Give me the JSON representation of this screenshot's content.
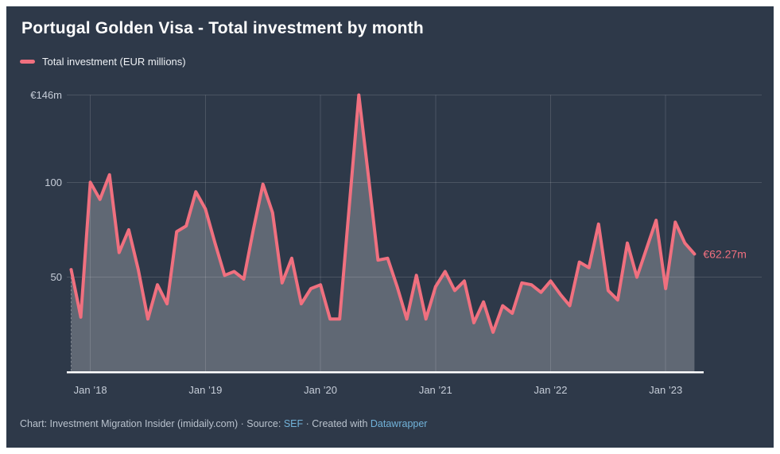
{
  "title": "Portugal Golden Visa - Total investment by month",
  "legend": {
    "label": "Total investment (EUR millions)",
    "color": "#f0707f"
  },
  "footer": {
    "prefix": "Chart: Investment Migration Insider (imidaily.com) · Source: ",
    "source_link": "SEF",
    "middle": " · Created with ",
    "tool_link": "Datawrapper"
  },
  "chart_data": {
    "type": "area",
    "title": "Portugal Golden Visa - Total investment by month",
    "series_name": "Total investment (EUR millions)",
    "unit": "EUR millions",
    "x": [
      "Nov 2017",
      "Dec 2017",
      "Jan 2018",
      "Feb 2018",
      "Mar 2018",
      "Apr 2018",
      "May 2018",
      "Jun 2018",
      "Jul 2018",
      "Aug 2018",
      "Sep 2018",
      "Oct 2018",
      "Nov 2018",
      "Dec 2018",
      "Jan 2019",
      "Feb 2019",
      "Mar 2019",
      "Apr 2019",
      "May 2019",
      "Jun 2019",
      "Jul 2019",
      "Aug 2019",
      "Sep 2019",
      "Oct 2019",
      "Nov 2019",
      "Dec 2019",
      "Jan 2020",
      "Feb 2020",
      "Mar 2020",
      "Apr 2020",
      "May 2020",
      "Jun 2020",
      "Jul 2020",
      "Aug 2020",
      "Sep 2020",
      "Oct 2020",
      "Nov 2020",
      "Dec 2020",
      "Jan 2021",
      "Feb 2021",
      "Mar 2021",
      "Apr 2021",
      "May 2021",
      "Jun 2021",
      "Jul 2021",
      "Aug 2021",
      "Sep 2021",
      "Oct 2021",
      "Nov 2021",
      "Dec 2021",
      "Jan 2022",
      "Feb 2022",
      "Mar 2022",
      "Apr 2022",
      "May 2022",
      "Jun 2022",
      "Jul 2022",
      "Aug 2022",
      "Sep 2022",
      "Oct 2022",
      "Nov 2022",
      "Dec 2022",
      "Jan 2023",
      "Feb 2023",
      "Mar 2023",
      "Apr 2023"
    ],
    "values": [
      54,
      29,
      100,
      91,
      104,
      63,
      75,
      54,
      28,
      46,
      36,
      74,
      77,
      95,
      86,
      68,
      51,
      53,
      49,
      75,
      99,
      84,
      47,
      60,
      36,
      44,
      46,
      28,
      28,
      87,
      146,
      103,
      59,
      60,
      45,
      28,
      51,
      28,
      45,
      53,
      43,
      48,
      26,
      37,
      21,
      35,
      31,
      47,
      46,
      42,
      48,
      41,
      35,
      58,
      55,
      78,
      43,
      38,
      68,
      50,
      65,
      80,
      44,
      79,
      68,
      62.27
    ],
    "ylim": [
      0,
      146
    ],
    "y_ticks": [
      {
        "value": 146,
        "label": "€146m"
      },
      {
        "value": 100,
        "label": "100"
      },
      {
        "value": 50,
        "label": "50"
      }
    ],
    "x_ticks": [
      {
        "index": 2,
        "label": "Jan ’18"
      },
      {
        "index": 14,
        "label": "Jan ’19"
      },
      {
        "index": 26,
        "label": "Jan ’20"
      },
      {
        "index": 38,
        "label": "Jan ’21"
      },
      {
        "index": 50,
        "label": "Jan ’22"
      },
      {
        "index": 62,
        "label": "Jan ’23"
      }
    ],
    "end_label": "€62.27m",
    "grid": true,
    "legend_position": "top-left",
    "line_color": "#f0707f",
    "area_color": "rgba(255,255,255,0.24)",
    "grid_color": "rgba(255,255,255,0.14)",
    "axis_label_color": "#c6cdd8",
    "baseline_color": "#ffffff"
  }
}
